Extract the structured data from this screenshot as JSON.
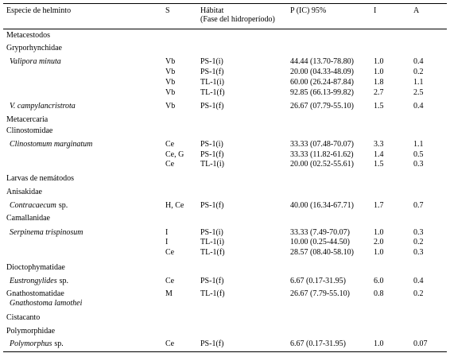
{
  "table": {
    "header": {
      "species": "Especie de helminto",
      "s": "S",
      "habitat": "Hábitat",
      "habitat_note": "(Fase del hidroperíodo)",
      "p": "P (IC) 95%",
      "i": "I",
      "a": "A"
    },
    "rows": [
      {
        "group": "Metacestodos"
      },
      {
        "group": "Gryporhynchidae"
      },
      {
        "species": "Valipora minuta",
        "s": "Vb",
        "habitat": "PS-1(i)",
        "p": "44.44 (13.70-78.80)",
        "i": "1.0",
        "a": "0.4"
      },
      {
        "s": "Vb",
        "habitat": "PS-1(f)",
        "p": "20.00 (04.33-48.09)",
        "i": "1.0",
        "a": "0.2"
      },
      {
        "s": "Vb",
        "habitat": "TL-1(i)",
        "p": "60.00 (26.24-87.84)",
        "i": "1.8",
        "a": "1.1"
      },
      {
        "s": "Vb",
        "habitat": "TL-1(f)",
        "p": "92.85 (66.13-99.82)",
        "i": "2.7",
        "a": "2.5"
      },
      {
        "species": "V. campylancristrota",
        "s": "Vb",
        "habitat": "PS-1(f)",
        "p": "26.67 (07.79-55.10)",
        "i": "1.5",
        "a": "0.4"
      },
      {
        "group": "Metacercaria"
      },
      {
        "group": "Clinostomidae"
      },
      {
        "species": "Clinostomum marginatum",
        "s": "Ce",
        "habitat": "PS-1(i)",
        "p": "33.33 (07.48-70.07)",
        "i": "3.3",
        "a": "1.1"
      },
      {
        "s": "Ce, G",
        "habitat": "PS-1(f)",
        "p": "33.33 (11.82-61.62)",
        "i": "1.4",
        "a": "0.5"
      },
      {
        "s": "Ce",
        "habitat": "TL-1(i)",
        "p": "20.00 (02.52-55.61)",
        "i": "1.5",
        "a": "0.3"
      },
      {
        "group": "Larvas de nemátodos"
      },
      {
        "group": "Anisakidae"
      },
      {
        "species": "Contracaecum",
        "suffix": "sp.",
        "s": "H, Ce",
        "habitat": "PS-1(f)",
        "p": "40.00 (16.34-67.71)",
        "i": "1.7",
        "a": "0.7"
      },
      {
        "group": "Camallanidae"
      },
      {
        "species": "Serpinema trispinosum",
        "s": "I",
        "habitat": "PS-1(i)",
        "p": "33.33 (7.49-70.07)",
        "i": "1.0",
        "a": "0.3"
      },
      {
        "s": "I",
        "habitat": "TL-1(i)",
        "p": "10.00 (0.25-44.50)",
        "i": "2.0",
        "a": "0.2"
      },
      {
        "s": "Ce",
        "habitat": "TL-1(f)",
        "p": "28.57 (08.40-58.10)",
        "i": "1.0",
        "a": "0.3"
      },
      {
        "group": "Dioctophymatidae"
      },
      {
        "species": "Eustrongylides",
        "suffix": "sp.",
        "s": "Ce",
        "habitat": "PS-1(f)",
        "p": "6.67 (0.17-31.95)",
        "i": "6.0",
        "a": "0.4"
      },
      {
        "group": "Gnathostomatidae",
        "s": "M",
        "habitat": "TL-1(f)",
        "p": "26.67 (7.79-55.10)",
        "i": "0.8",
        "a": "0.2"
      },
      {
        "species": "Gnathostoma lamothei"
      },
      {
        "group": "Cistacanto"
      },
      {
        "group": "Polymorphidae"
      },
      {
        "species": "Polymorphus",
        "suffix": "sp.",
        "s": "Ce",
        "habitat": "PS-1(f)",
        "p": "6.67 (0.17-31.95)",
        "i": "1.0",
        "a": "0.07"
      }
    ]
  }
}
